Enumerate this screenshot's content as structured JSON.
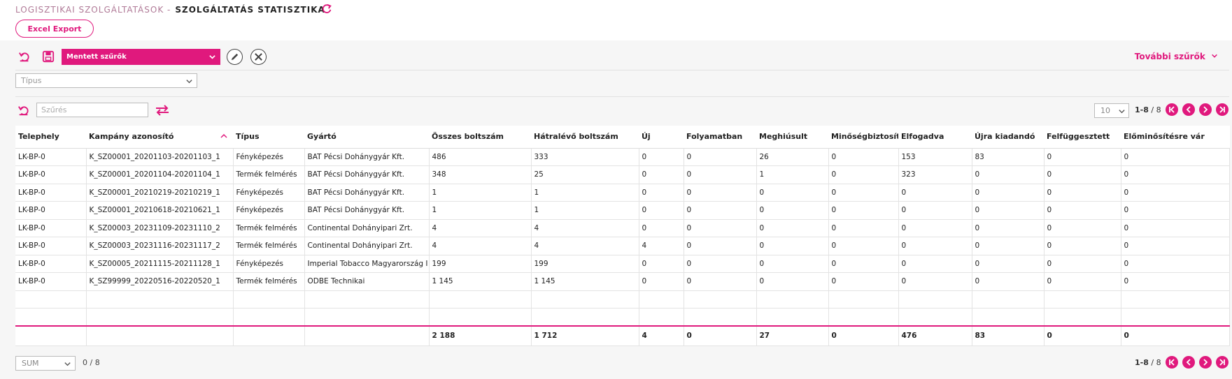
{
  "header": {
    "breadcrumb_parent": "LOGISZTIKAI SZOLGÁLTATÁSOK -",
    "breadcrumb_current": "SZOLGÁLTATÁS STATISZTIKA",
    "excel_export_label": "Excel Export"
  },
  "filters": {
    "saved_filters_label": "Mentett szűrők",
    "more_filters_label": "További szűrők",
    "type_placeholder": "Típus",
    "search_placeholder": "Szűrés"
  },
  "pager": {
    "page_size": "10",
    "range": "1-8",
    "separator": " / ",
    "total": "8"
  },
  "table": {
    "columns": [
      "Telephely",
      "Kampány azonosító",
      "Típus",
      "Gyártó",
      "Összes boltszám",
      "Hátralévő boltszám",
      "Új",
      "Folyamatban",
      "Meghiúsult",
      "Minőségbiztosít",
      "Elfogadva",
      "Újra kiadandó",
      "Felfüggesztett",
      "Előminősítésre vár"
    ],
    "rows": [
      [
        "LK-BP-0",
        "K_SZ00001_20201103-20201103_1",
        "Fényképezés",
        "BAT Pécsi Dohánygyár Kft.",
        "486",
        "333",
        "0",
        "0",
        "26",
        "0",
        "153",
        "83",
        "0",
        "0"
      ],
      [
        "LK-BP-0",
        "K_SZ00001_20201104-20201104_1",
        "Termék felmérés",
        "BAT Pécsi Dohánygyár Kft.",
        "348",
        "25",
        "0",
        "0",
        "1",
        "0",
        "323",
        "0",
        "0",
        "0"
      ],
      [
        "LK-BP-0",
        "K_SZ00001_20210219-20210219_1",
        "Fényképezés",
        "BAT Pécsi Dohánygyár Kft.",
        "1",
        "1",
        "0",
        "0",
        "0",
        "0",
        "0",
        "0",
        "0",
        "0"
      ],
      [
        "LK-BP-0",
        "K_SZ00001_20210618-20210621_1",
        "Fényképezés",
        "BAT Pécsi Dohánygyár Kft.",
        "1",
        "1",
        "0",
        "0",
        "0",
        "0",
        "0",
        "0",
        "0",
        "0"
      ],
      [
        "LK-BP-0",
        "K_SZ00003_20231109-20231110_2",
        "Termék felmérés",
        "Continental Dohányipari Zrt.",
        "4",
        "4",
        "0",
        "0",
        "0",
        "0",
        "0",
        "0",
        "0",
        "0"
      ],
      [
        "LK-BP-0",
        "K_SZ00003_20231116-20231117_2",
        "Termék felmérés",
        "Continental Dohányipari Zrt.",
        "4",
        "4",
        "4",
        "0",
        "0",
        "0",
        "0",
        "0",
        "0",
        "0"
      ],
      [
        "LK-BP-0",
        "K_SZ00005_20211115-20211128_1",
        "Fényképezés",
        "Imperial Tobacco Magyarország I",
        "199",
        "199",
        "0",
        "0",
        "0",
        "0",
        "0",
        "0",
        "0",
        "0"
      ],
      [
        "LK-BP-0",
        "K_SZ99999_20220516-20220520_1",
        "Termék felmérés",
        "ODBE Technikai",
        "1 145",
        "1 145",
        "0",
        "0",
        "0",
        "0",
        "0",
        "0",
        "0",
        "0"
      ]
    ],
    "totals": [
      "",
      "",
      "",
      "",
      "2 188",
      "1 712",
      "4",
      "0",
      "27",
      "0",
      "476",
      "83",
      "0",
      "0"
    ]
  },
  "footer": {
    "aggregate": "SUM",
    "selected_text": "0  /  8"
  },
  "colors": {
    "accent": "#e0197d"
  }
}
